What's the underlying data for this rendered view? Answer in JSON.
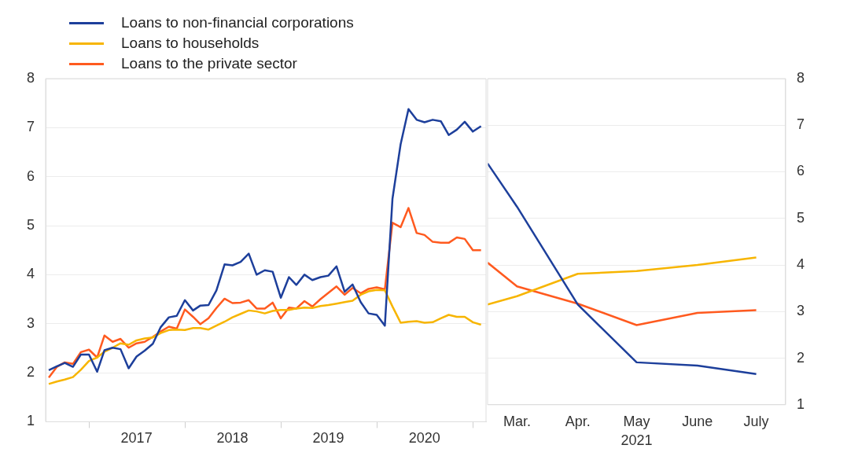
{
  "chart_data": [
    {
      "type": "line",
      "legend": "top left",
      "grid": "y",
      "ylim": [
        1,
        8
      ],
      "yticks": [
        1,
        2,
        3,
        4,
        5,
        6,
        7,
        8
      ],
      "x": [
        "2016-08",
        "2016-09",
        "2016-10",
        "2016-11",
        "2016-12",
        "2017-01",
        "2017-02",
        "2017-03",
        "2017-04",
        "2017-05",
        "2017-06",
        "2017-07",
        "2017-08",
        "2017-09",
        "2017-10",
        "2017-11",
        "2017-12",
        "2018-01",
        "2018-02",
        "2018-03",
        "2018-04",
        "2018-05",
        "2018-06",
        "2018-07",
        "2018-08",
        "2018-09",
        "2018-10",
        "2018-11",
        "2018-12",
        "2019-01",
        "2019-02",
        "2019-03",
        "2019-04",
        "2019-05",
        "2019-06",
        "2019-07",
        "2019-08",
        "2019-09",
        "2019-10",
        "2019-11",
        "2019-12",
        "2020-01",
        "2020-02",
        "2020-03",
        "2020-04",
        "2020-05",
        "2020-06",
        "2020-07",
        "2020-08",
        "2020-09",
        "2020-10",
        "2020-11",
        "2020-12",
        "2021-01",
        "2021-02"
      ],
      "xlim": [
        "2016-07-20",
        "2021-02-20"
      ],
      "xticks": [
        {
          "value": "2017-01",
          "label": null
        },
        {
          "value": "2017-07",
          "label": "2017"
        },
        {
          "value": "2018-01",
          "label": null
        },
        {
          "value": "2018-07",
          "label": "2018"
        },
        {
          "value": "2019-01",
          "label": null
        },
        {
          "value": "2019-07",
          "label": "2019"
        },
        {
          "value": "2020-01",
          "label": null
        },
        {
          "value": "2020-07",
          "label": "2020"
        },
        {
          "value": "2021-01",
          "label": null
        }
      ],
      "series": [
        {
          "name": "Loans to non-financial corporations",
          "color": "#1d3f9b",
          "values": [
            2.05,
            2.13,
            2.2,
            2.12,
            2.37,
            2.37,
            2.02,
            2.46,
            2.51,
            2.48,
            2.09,
            2.33,
            2.45,
            2.59,
            2.93,
            3.13,
            3.16,
            3.48,
            3.27,
            3.37,
            3.38,
            3.68,
            4.21,
            4.19,
            4.26,
            4.43,
            4.0,
            4.09,
            4.06,
            3.53,
            3.95,
            3.79,
            4.0,
            3.89,
            3.95,
            3.98,
            4.17,
            3.65,
            3.8,
            3.44,
            3.21,
            3.18,
            2.96,
            5.55,
            6.66,
            7.38,
            7.16,
            7.11,
            7.16,
            7.13,
            6.85,
            6.96,
            7.12,
            6.92,
            7.03
          ]
        },
        {
          "name": "Loans to households",
          "color": "#f7b500",
          "values": [
            1.77,
            1.82,
            1.86,
            1.91,
            2.06,
            2.24,
            2.31,
            2.43,
            2.51,
            2.6,
            2.57,
            2.66,
            2.7,
            2.72,
            2.81,
            2.87,
            2.88,
            2.87,
            2.91,
            2.91,
            2.88,
            2.96,
            3.04,
            3.13,
            3.2,
            3.27,
            3.25,
            3.21,
            3.26,
            3.28,
            3.28,
            3.31,
            3.33,
            3.32,
            3.36,
            3.38,
            3.41,
            3.44,
            3.47,
            3.59,
            3.66,
            3.69,
            3.68,
            3.35,
            3.02,
            3.04,
            3.05,
            3.02,
            3.03,
            3.11,
            3.18,
            3.14,
            3.14,
            3.03,
            2.98
          ]
        },
        {
          "name": "Loans to the private sector",
          "color": "#ff5a1f",
          "values": [
            1.9,
            2.12,
            2.21,
            2.18,
            2.42,
            2.47,
            2.31,
            2.76,
            2.63,
            2.69,
            2.51,
            2.6,
            2.63,
            2.73,
            2.84,
            2.94,
            2.9,
            3.29,
            3.14,
            2.99,
            3.11,
            3.32,
            3.51,
            3.42,
            3.43,
            3.48,
            3.31,
            3.31,
            3.43,
            3.11,
            3.33,
            3.31,
            3.46,
            3.35,
            3.5,
            3.63,
            3.76,
            3.59,
            3.73,
            3.62,
            3.71,
            3.74,
            3.7,
            5.06,
            4.97,
            5.36,
            4.85,
            4.81,
            4.67,
            4.65,
            4.65,
            4.76,
            4.73,
            4.5,
            4.5
          ]
        }
      ]
    },
    {
      "type": "line",
      "grid": "y",
      "xlabel": "2021",
      "ylim": [
        1,
        8
      ],
      "yticks": [
        1,
        2,
        3,
        4,
        5,
        6,
        7,
        8
      ],
      "x": [
        "2021-02-14",
        "2021-03",
        "2021-04",
        "2021-05",
        "2021-06",
        "2021-07"
      ],
      "xlim": [
        "2021-02-14",
        "2021-07-16"
      ],
      "xticks": [
        {
          "value": "2021-03",
          "label": "Mar."
        },
        {
          "value": "2021-04",
          "label": "Apr."
        },
        {
          "value": "2021-05",
          "label": "May"
        },
        {
          "value": "2021-06",
          "label": "June"
        },
        {
          "value": "2021-07",
          "label": "July"
        }
      ],
      "series": [
        {
          "color": "#1d3f9b",
          "values": [
            6.18,
            5.25,
            3.15,
            1.91,
            1.84,
            1.66
          ]
        },
        {
          "color": "#f7b500",
          "values": [
            3.15,
            3.33,
            3.81,
            3.87,
            4.0,
            4.16
          ]
        },
        {
          "color": "#ff5a1f",
          "values": [
            4.05,
            3.54,
            3.17,
            2.71,
            2.97,
            3.03
          ]
        }
      ]
    }
  ]
}
